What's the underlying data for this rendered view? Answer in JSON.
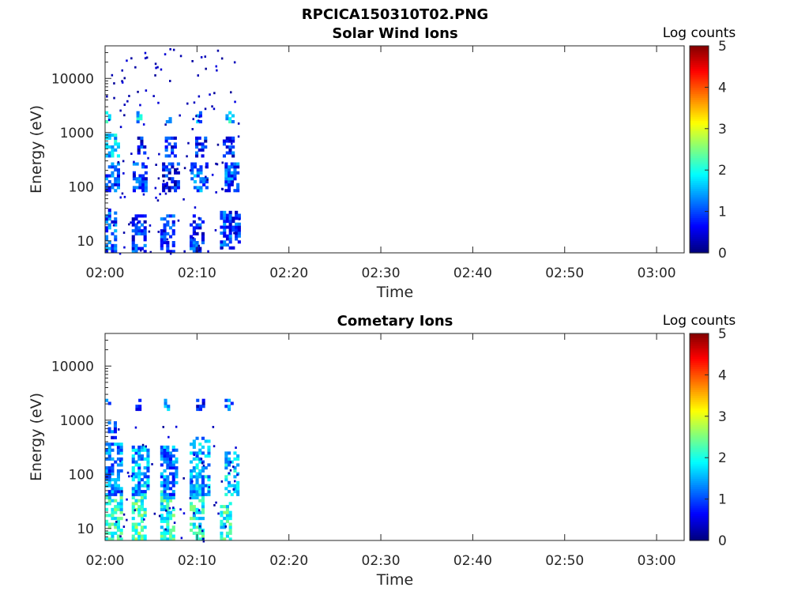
{
  "figure": {
    "title": "RPCICA150310T02.PNG"
  },
  "colorscale": {
    "colors": [
      "#00007f",
      "#0000ff",
      "#007fff",
      "#00ffff",
      "#7fff7f",
      "#ffff00",
      "#ff7f00",
      "#ff0000",
      "#7f0000"
    ]
  },
  "chart_data": [
    {
      "type": "heatmap",
      "title": "Solar Wind Ions",
      "xlabel": "Time",
      "ylabel": "Energy (eV)",
      "y_scale": "log",
      "xlim": [
        "02:00",
        "03:03"
      ],
      "ylim": [
        6,
        40000
      ],
      "x_ticks": [
        "02:00",
        "02:10",
        "02:20",
        "02:30",
        "02:40",
        "02:50",
        "03:00"
      ],
      "y_ticks": [
        "10",
        "100",
        "1000",
        "10000"
      ],
      "colorbar": {
        "label": "Log counts",
        "range": [
          0,
          5
        ],
        "ticks": [
          "0",
          "1",
          "2",
          "3",
          "4",
          "5"
        ]
      },
      "data_time_range": [
        "02:00",
        "02:14.5"
      ],
      "clusters": [
        {
          "t": [
            0.0,
            1.2
          ],
          "e": [
            6,
            35
          ],
          "v": 1.0
        },
        {
          "t": [
            2.9,
            4.2
          ],
          "e": [
            6,
            28
          ],
          "v": 0.8
        },
        {
          "t": [
            6.0,
            7.3
          ],
          "e": [
            6,
            28
          ],
          "v": 0.8
        },
        {
          "t": [
            9.2,
            10.5
          ],
          "e": [
            6,
            30
          ],
          "v": 0.8
        },
        {
          "t": [
            12.5,
            14.5
          ],
          "e": [
            7,
            35
          ],
          "v": 0.9
        },
        {
          "t": [
            0.0,
            1.5
          ],
          "e": [
            80,
            280
          ],
          "v": 0.9
        },
        {
          "t": [
            3.0,
            4.6
          ],
          "e": [
            80,
            260
          ],
          "v": 0.9
        },
        {
          "t": [
            6.2,
            8.0
          ],
          "e": [
            80,
            280
          ],
          "v": 0.7
        },
        {
          "t": [
            9.3,
            11.0
          ],
          "e": [
            80,
            280
          ],
          "v": 1.1
        },
        {
          "t": [
            13.0,
            14.5
          ],
          "e": [
            80,
            280
          ],
          "v": 1.0
        },
        {
          "t": [
            0.0,
            1.5
          ],
          "e": [
            350,
            900
          ],
          "v": 1.6
        },
        {
          "t": [
            3.5,
            4.2
          ],
          "e": [
            350,
            800
          ],
          "v": 0.7
        },
        {
          "t": [
            6.5,
            7.5
          ],
          "e": [
            350,
            800
          ],
          "v": 0.7
        },
        {
          "t": [
            9.8,
            11.0
          ],
          "e": [
            350,
            800
          ],
          "v": 0.7
        },
        {
          "t": [
            12.8,
            14.0
          ],
          "e": [
            350,
            800
          ],
          "v": 0.8
        },
        {
          "t": [
            0.0,
            0.6
          ],
          "e": [
            1500,
            2300
          ],
          "v": 1.7
        },
        {
          "t": [
            3.4,
            3.9
          ],
          "e": [
            1500,
            2300
          ],
          "v": 1.6
        },
        {
          "t": [
            6.6,
            7.2
          ],
          "e": [
            1500,
            2300
          ],
          "v": 1.7
        },
        {
          "t": [
            9.9,
            10.5
          ],
          "e": [
            1500,
            2300
          ],
          "v": 1.3
        },
        {
          "t": [
            13.1,
            13.9
          ],
          "e": [
            1500,
            2300
          ],
          "v": 1.8
        }
      ],
      "scatter_region": {
        "t": [
          0.0,
          14.5
        ],
        "e": [
          6,
          40000
        ],
        "count": 140
      }
    },
    {
      "type": "heatmap",
      "title": "Cometary Ions",
      "xlabel": "Time",
      "ylabel": "Energy (eV)",
      "y_scale": "log",
      "xlim": [
        "02:00",
        "03:03"
      ],
      "ylim": [
        6,
        40000
      ],
      "x_ticks": [
        "02:00",
        "02:10",
        "02:20",
        "02:30",
        "02:40",
        "02:50",
        "03:00"
      ],
      "y_ticks": [
        "10",
        "100",
        "1000",
        "10000"
      ],
      "colorbar": {
        "label": "Log counts",
        "range": [
          0,
          5
        ],
        "ticks": [
          "0",
          "1",
          "2",
          "3",
          "4",
          "5"
        ]
      },
      "data_time_range": [
        "02:00",
        "02:14.5"
      ],
      "clusters": [
        {
          "t": [
            0.0,
            1.8
          ],
          "e": [
            6,
            60
          ],
          "v": 2.0
        },
        {
          "t": [
            2.9,
            4.5
          ],
          "e": [
            6,
            60
          ],
          "v": 2.2
        },
        {
          "t": [
            6.0,
            7.3
          ],
          "e": [
            6,
            45
          ],
          "v": 2.0
        },
        {
          "t": [
            9.2,
            10.5
          ],
          "e": [
            6,
            45
          ],
          "v": 2.0
        },
        {
          "t": [
            12.5,
            13.5
          ],
          "e": [
            6,
            28
          ],
          "v": 2.0
        },
        {
          "t": [
            0.0,
            1.8
          ],
          "e": [
            40,
            350
          ],
          "v": 1.2
        },
        {
          "t": [
            2.9,
            4.6
          ],
          "e": [
            40,
            300
          ],
          "v": 1.4
        },
        {
          "t": [
            6.0,
            7.8
          ],
          "e": [
            40,
            300
          ],
          "v": 1.2
        },
        {
          "t": [
            9.2,
            11.2
          ],
          "e": [
            40,
            450
          ],
          "v": 1.5
        },
        {
          "t": [
            13.0,
            14.5
          ],
          "e": [
            40,
            250
          ],
          "v": 1.6
        },
        {
          "t": [
            0.3,
            1.1
          ],
          "e": [
            450,
            900
          ],
          "v": 0.8
        },
        {
          "t": [
            0.0,
            0.6
          ],
          "e": [
            1500,
            2300
          ],
          "v": 0.9
        },
        {
          "t": [
            3.3,
            3.8
          ],
          "e": [
            1500,
            2300
          ],
          "v": 0.9
        },
        {
          "t": [
            6.4,
            7.0
          ],
          "e": [
            1500,
            2300
          ],
          "v": 1.2
        },
        {
          "t": [
            9.9,
            10.6
          ],
          "e": [
            1500,
            2300
          ],
          "v": 0.8
        },
        {
          "t": [
            13.0,
            13.8
          ],
          "e": [
            1500,
            2300
          ],
          "v": 1.1
        }
      ],
      "scatter_region": {
        "t": [
          0.0,
          14.5
        ],
        "e": [
          6,
          800
        ],
        "count": 60
      }
    }
  ]
}
